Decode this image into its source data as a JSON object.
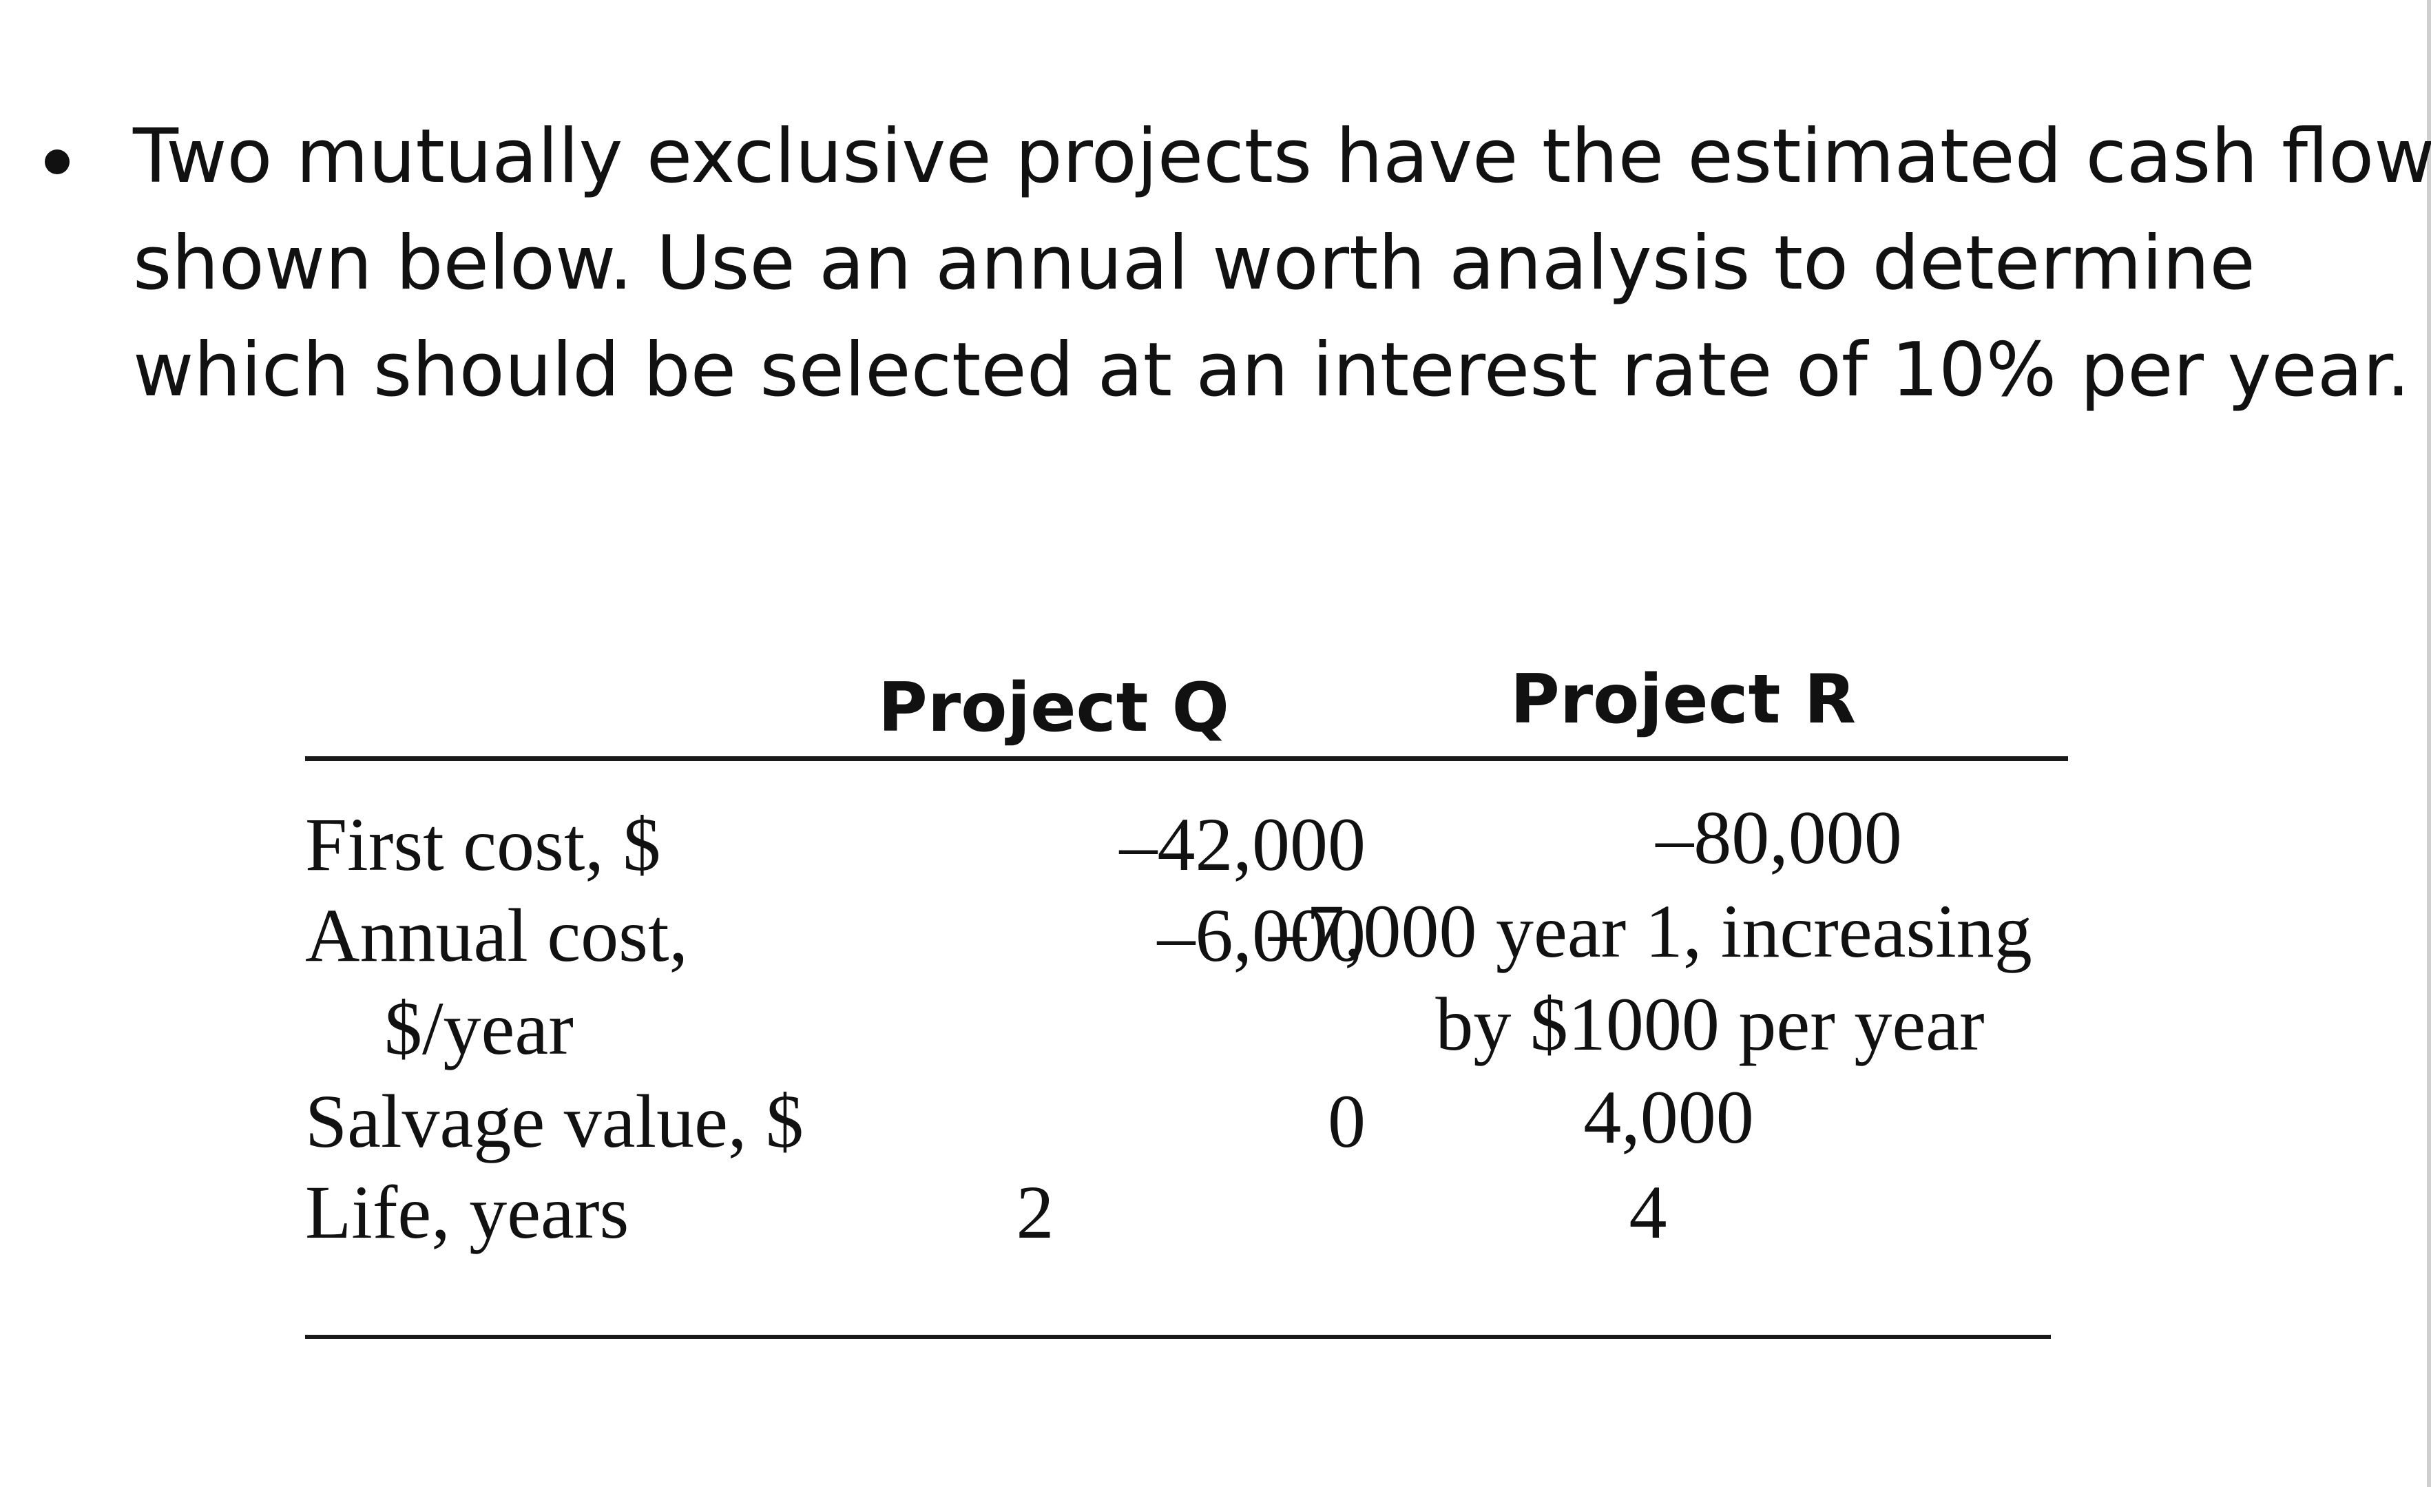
{
  "bullet": {
    "lines": [
      "Two mutually exclusive projects have the estimated cash flows",
      "shown below. Use an annual worth analysis to determine",
      "which should be selected at an interest rate of 10% per year."
    ]
  },
  "table": {
    "headers": {
      "q": "Project Q",
      "r": "Project R"
    },
    "rows": [
      {
        "label": "First cost, $",
        "q": "–42,000",
        "r": "–80,000"
      },
      {
        "label": "Annual cost,",
        "q": "–6,000",
        "r": "–7,000 year 1, increasing"
      },
      {
        "label": "$/year",
        "q": "",
        "r": "by $1000 per year"
      },
      {
        "label": "Salvage value, $",
        "q": "0",
        "r": "4,000"
      },
      {
        "label": "Life, years",
        "q": "2",
        "r": "4"
      }
    ]
  }
}
